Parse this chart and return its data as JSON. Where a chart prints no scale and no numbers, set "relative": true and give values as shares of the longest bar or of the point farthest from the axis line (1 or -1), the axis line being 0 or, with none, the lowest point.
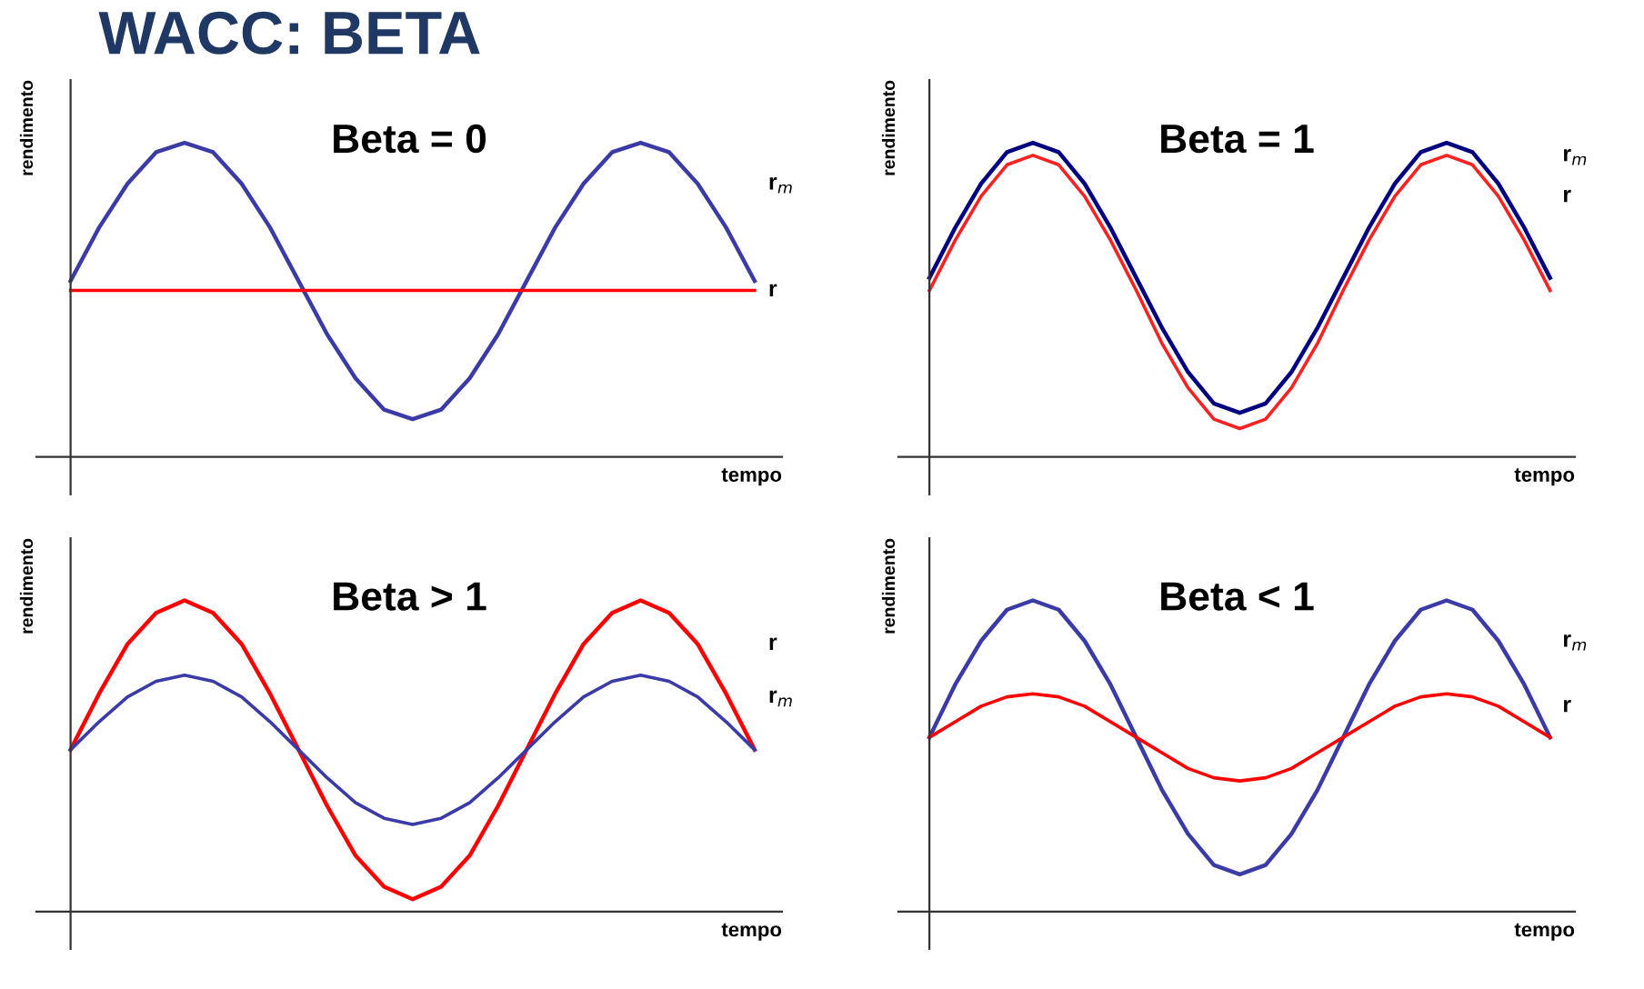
{
  "chart_data": [
    {
      "type": "line",
      "title": "WACC: BETA",
      "annotations": [
        "Beta = 0"
      ],
      "xlabel": "tempo",
      "ylabel": "rendimento",
      "relative": true,
      "legend": false,
      "tick_labels": false,
      "categories": [
        null,
        null,
        null,
        null,
        null,
        null,
        null,
        null,
        null,
        null,
        null,
        null,
        null,
        null,
        null,
        null,
        null,
        null,
        null,
        null,
        null,
        null,
        null,
        null,
        null
      ],
      "series": [
        {
          "name": "r$_{m}$",
          "color": "#3b3ba8",
          "values": [
            0.56,
            0.73,
            0.87,
            0.97,
            1.0,
            0.97,
            0.87,
            0.73,
            0.56,
            0.39,
            0.25,
            0.15,
            0.12,
            0.15,
            0.25,
            0.39,
            0.56,
            0.73,
            0.87,
            0.97,
            1.0,
            0.97,
            0.87,
            0.73,
            0.56
          ]
        },
        {
          "name": "r",
          "color": "#ff0000",
          "values": [
            0.53,
            0.53,
            0.53,
            0.53,
            0.53,
            0.53,
            0.53,
            0.53,
            0.53,
            0.53,
            0.53,
            0.53,
            0.53,
            0.53,
            0.53,
            0.53,
            0.53,
            0.53,
            0.53,
            0.53,
            0.53,
            0.53,
            0.53,
            0.53,
            0.53
          ]
        }
      ]
    },
    {
      "type": "line",
      "annotations": [
        "Beta = 1"
      ],
      "xlabel": "tempo",
      "ylabel": "rendimento",
      "relative": true,
      "legend": false,
      "tick_labels": false,
      "categories": [
        null,
        null,
        null,
        null,
        null,
        null,
        null,
        null,
        null,
        null,
        null,
        null,
        null,
        null,
        null,
        null,
        null,
        null,
        null,
        null,
        null,
        null,
        null,
        null,
        null
      ],
      "series": [
        {
          "name": "r$_{m}$",
          "color": "#000080",
          "values": [
            0.57,
            0.73,
            0.87,
            0.97,
            1.0,
            0.97,
            0.87,
            0.73,
            0.57,
            0.41,
            0.27,
            0.17,
            0.14,
            0.17,
            0.27,
            0.41,
            0.57,
            0.73,
            0.87,
            0.97,
            1.0,
            0.97,
            0.87,
            0.73,
            0.57
          ]
        },
        {
          "name": "r",
          "color": "#ff2020",
          "values": [
            0.53,
            0.69,
            0.83,
            0.93,
            0.96,
            0.93,
            0.83,
            0.69,
            0.53,
            0.36,
            0.22,
            0.12,
            0.09,
            0.12,
            0.22,
            0.36,
            0.53,
            0.69,
            0.83,
            0.93,
            0.96,
            0.93,
            0.83,
            0.69,
            0.53
          ]
        }
      ]
    },
    {
      "type": "line",
      "annotations": [
        "Beta > 1"
      ],
      "xlabel": "tempo",
      "ylabel": "rendimento",
      "relative": true,
      "legend": false,
      "tick_labels": false,
      "categories": [
        null,
        null,
        null,
        null,
        null,
        null,
        null,
        null,
        null,
        null,
        null,
        null,
        null,
        null,
        null,
        null,
        null,
        null,
        null,
        null,
        null,
        null,
        null,
        null,
        null
      ],
      "series": [
        {
          "name": "r",
          "color": "#ff0000",
          "values": [
            0.52,
            0.7,
            0.86,
            0.96,
            1.0,
            0.96,
            0.86,
            0.7,
            0.52,
            0.34,
            0.18,
            0.08,
            0.04,
            0.08,
            0.18,
            0.34,
            0.52,
            0.7,
            0.86,
            0.96,
            1.0,
            0.96,
            0.86,
            0.7,
            0.52
          ]
        },
        {
          "name": "r$_{m}$",
          "color": "#3b3ba8",
          "values": [
            0.52,
            0.61,
            0.69,
            0.74,
            0.76,
            0.74,
            0.69,
            0.61,
            0.52,
            0.43,
            0.35,
            0.3,
            0.28,
            0.3,
            0.35,
            0.43,
            0.52,
            0.61,
            0.69,
            0.74,
            0.76,
            0.74,
            0.69,
            0.61,
            0.52
          ]
        }
      ]
    },
    {
      "type": "line",
      "annotations": [
        "Beta < 1"
      ],
      "xlabel": "tempo",
      "ylabel": "rendimento",
      "relative": true,
      "legend": false,
      "tick_labels": false,
      "categories": [
        null,
        null,
        null,
        null,
        null,
        null,
        null,
        null,
        null,
        null,
        null,
        null,
        null,
        null,
        null,
        null,
        null,
        null,
        null,
        null,
        null,
        null,
        null,
        null,
        null
      ],
      "series": [
        {
          "name": "r$_{m}$",
          "color": "#3b3ba8",
          "values": [
            0.56,
            0.73,
            0.87,
            0.97,
            1.0,
            0.97,
            0.87,
            0.73,
            0.56,
            0.39,
            0.25,
            0.15,
            0.12,
            0.15,
            0.25,
            0.39,
            0.56,
            0.73,
            0.87,
            0.97,
            1.0,
            0.97,
            0.87,
            0.73,
            0.56
          ]
        },
        {
          "name": "r",
          "color": "#ff0000",
          "values": [
            0.56,
            0.61,
            0.66,
            0.69,
            0.7,
            0.69,
            0.66,
            0.61,
            0.56,
            0.51,
            0.46,
            0.43,
            0.42,
            0.43,
            0.46,
            0.51,
            0.56,
            0.61,
            0.66,
            0.69,
            0.7,
            0.69,
            0.66,
            0.61,
            0.56
          ]
        }
      ]
    }
  ]
}
